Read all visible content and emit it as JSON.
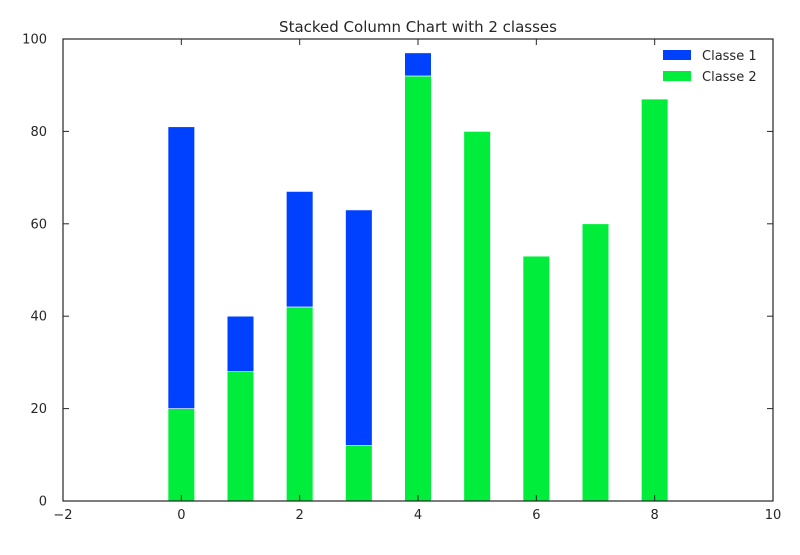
{
  "chart_data": {
    "type": "bar",
    "stacked": true,
    "title": "Stacked Column Chart with 2 classes",
    "xlabel": "",
    "ylabel": "",
    "xlim": [
      -2,
      10
    ],
    "ylim": [
      0,
      100
    ],
    "x_ticks": [
      "−2",
      "0",
      "2",
      "4",
      "6",
      "8",
      "10"
    ],
    "y_ticks": [
      "0",
      "20",
      "40",
      "60",
      "80",
      "100"
    ],
    "x": [
      0,
      1,
      2,
      3,
      4,
      5,
      6,
      7,
      8
    ],
    "series": [
      {
        "name": "Classe 2",
        "color": "#00ee3b",
        "values": [
          20,
          28,
          42,
          12,
          92,
          80,
          53,
          60,
          87
        ]
      },
      {
        "name": "Classe 1",
        "color": "#0040ff",
        "values": [
          61,
          12,
          25,
          51,
          5,
          0,
          0,
          0,
          0
        ]
      }
    ],
    "legend": {
      "position": "top-right",
      "entries": [
        {
          "label": "Classe 1",
          "color": "#0040ff"
        },
        {
          "label": "Classe 2",
          "color": "#00ee3b"
        }
      ]
    },
    "grid": false
  }
}
